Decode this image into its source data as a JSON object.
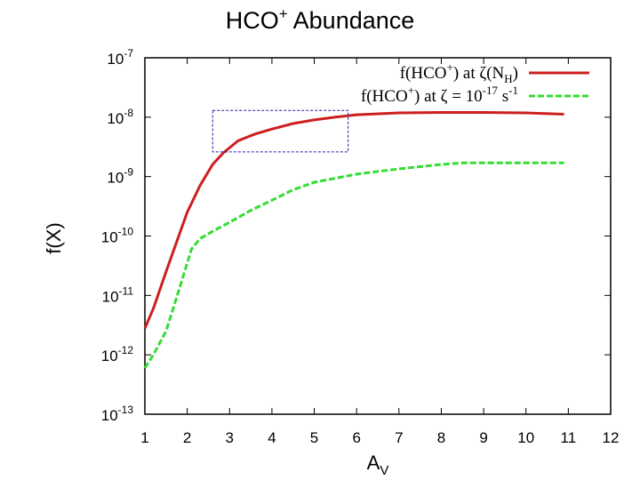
{
  "chart_data": {
    "type": "line",
    "title": "HCO⁺ Abundance",
    "title_main": "HCO",
    "title_sup": "+",
    "title_rest": " Abundance",
    "xlabel": "A",
    "xlabel_sub": "V",
    "ylabel": "f(X)",
    "xlim": [
      1,
      12
    ],
    "ylim": [
      1e-13,
      1e-07
    ],
    "y_scale": "log",
    "x_ticks": [
      1,
      2,
      3,
      4,
      5,
      6,
      7,
      8,
      9,
      10,
      11,
      12
    ],
    "y_tick_exponents": [
      -7,
      -8,
      -9,
      -10,
      -11,
      -12,
      -13
    ],
    "y_tick_base": "10",
    "grid": false,
    "legend_position": "top-right",
    "series": [
      {
        "name": "f(HCO+) at ζ(NH)",
        "color": "#cc1f1f",
        "style": "solid",
        "x": [
          1.0,
          1.2,
          1.5,
          1.8,
          2.0,
          2.3,
          2.6,
          2.85,
          3.2,
          3.6,
          4.0,
          4.5,
          5.0,
          5.5,
          6.0,
          7.0,
          8.0,
          9.0,
          10.0,
          10.9
        ],
        "y": [
          2.8e-12,
          6e-12,
          2.5e-11,
          1e-10,
          2.5e-10,
          7e-10,
          1.6e-09,
          2.5e-09,
          4e-09,
          5.2e-09,
          6.3e-09,
          7.8e-09,
          9e-09,
          1e-08,
          1.1e-08,
          1.18e-08,
          1.2e-08,
          1.2e-08,
          1.18e-08,
          1.12e-08
        ]
      },
      {
        "name": "f(HCO+) at ζ = 10-17 s-1",
        "color": "#33dd33",
        "style": "dashed",
        "x": [
          1.0,
          1.2,
          1.5,
          1.8,
          2.0,
          2.1,
          2.3,
          2.6,
          3.0,
          3.5,
          4.0,
          4.5,
          5.0,
          6.0,
          7.0,
          8.0,
          8.5,
          9.0,
          10.0,
          10.9
        ],
        "y": [
          6e-13,
          1e-12,
          2.5e-12,
          1.2e-11,
          3.5e-11,
          6e-11,
          9e-11,
          1.2e-10,
          1.7e-10,
          2.7e-10,
          4e-10,
          6e-10,
          8e-10,
          1.1e-09,
          1.35e-09,
          1.6e-09,
          1.7e-09,
          1.7e-09,
          1.7e-09,
          1.7e-09
        ]
      }
    ],
    "legend": [
      {
        "base": "f(HCO",
        "sup": "+",
        "mid": ") at ζ(N",
        "sub": "H",
        "end": ")"
      },
      {
        "base": "f(HCO",
        "sup": "+",
        "mid": ") at ζ = 10",
        "sup2": "-17",
        "end": " s",
        "sup3": "-1"
      }
    ],
    "annotation": {
      "type": "dashed-rectangle",
      "color": "#1a1aaa",
      "x_range": [
        2.6,
        5.8
      ],
      "y_range": [
        2.6e-09,
        1.3e-08
      ]
    }
  }
}
